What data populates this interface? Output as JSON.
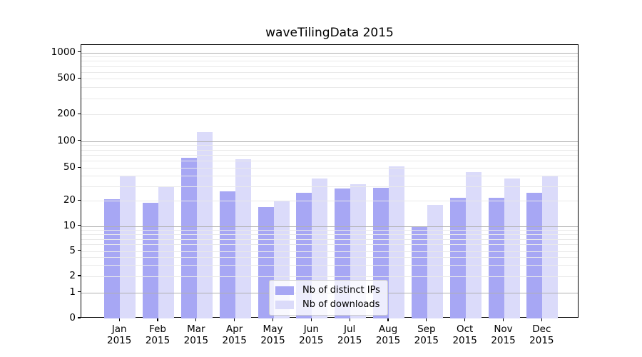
{
  "chart_data": {
    "type": "bar",
    "title": "waveTilingData 2015",
    "year_label": "2015",
    "months": [
      "Jan",
      "Feb",
      "Mar",
      "Apr",
      "May",
      "Jun",
      "Jul",
      "Aug",
      "Sep",
      "Oct",
      "Nov",
      "Dec"
    ],
    "series": [
      {
        "name": "Nb of distinct IPs",
        "color": "#a7a7f4",
        "values": [
          21,
          19,
          65,
          26,
          17,
          25,
          28,
          29,
          10,
          22,
          22,
          25
        ]
      },
      {
        "name": "Nb of downloads",
        "color": "#dbdbfa",
        "values": [
          40,
          30,
          126,
          63,
          20,
          37,
          32,
          52,
          18,
          45,
          37,
          40
        ]
      }
    ],
    "yscale": "symlog",
    "yticks": [
      0,
      1,
      2,
      5,
      10,
      20,
      50,
      100,
      200,
      500,
      1000
    ],
    "ylim": [
      0,
      1200
    ],
    "xlabel": "",
    "ylabel": "",
    "grid": true,
    "legend_position": "lower center",
    "colors": {
      "background": "#ffffff",
      "axis": "#000000",
      "grid_major": "#b0b0b0",
      "grid_minor": "#e9e9e9",
      "legend_border": "#cccccc"
    }
  }
}
